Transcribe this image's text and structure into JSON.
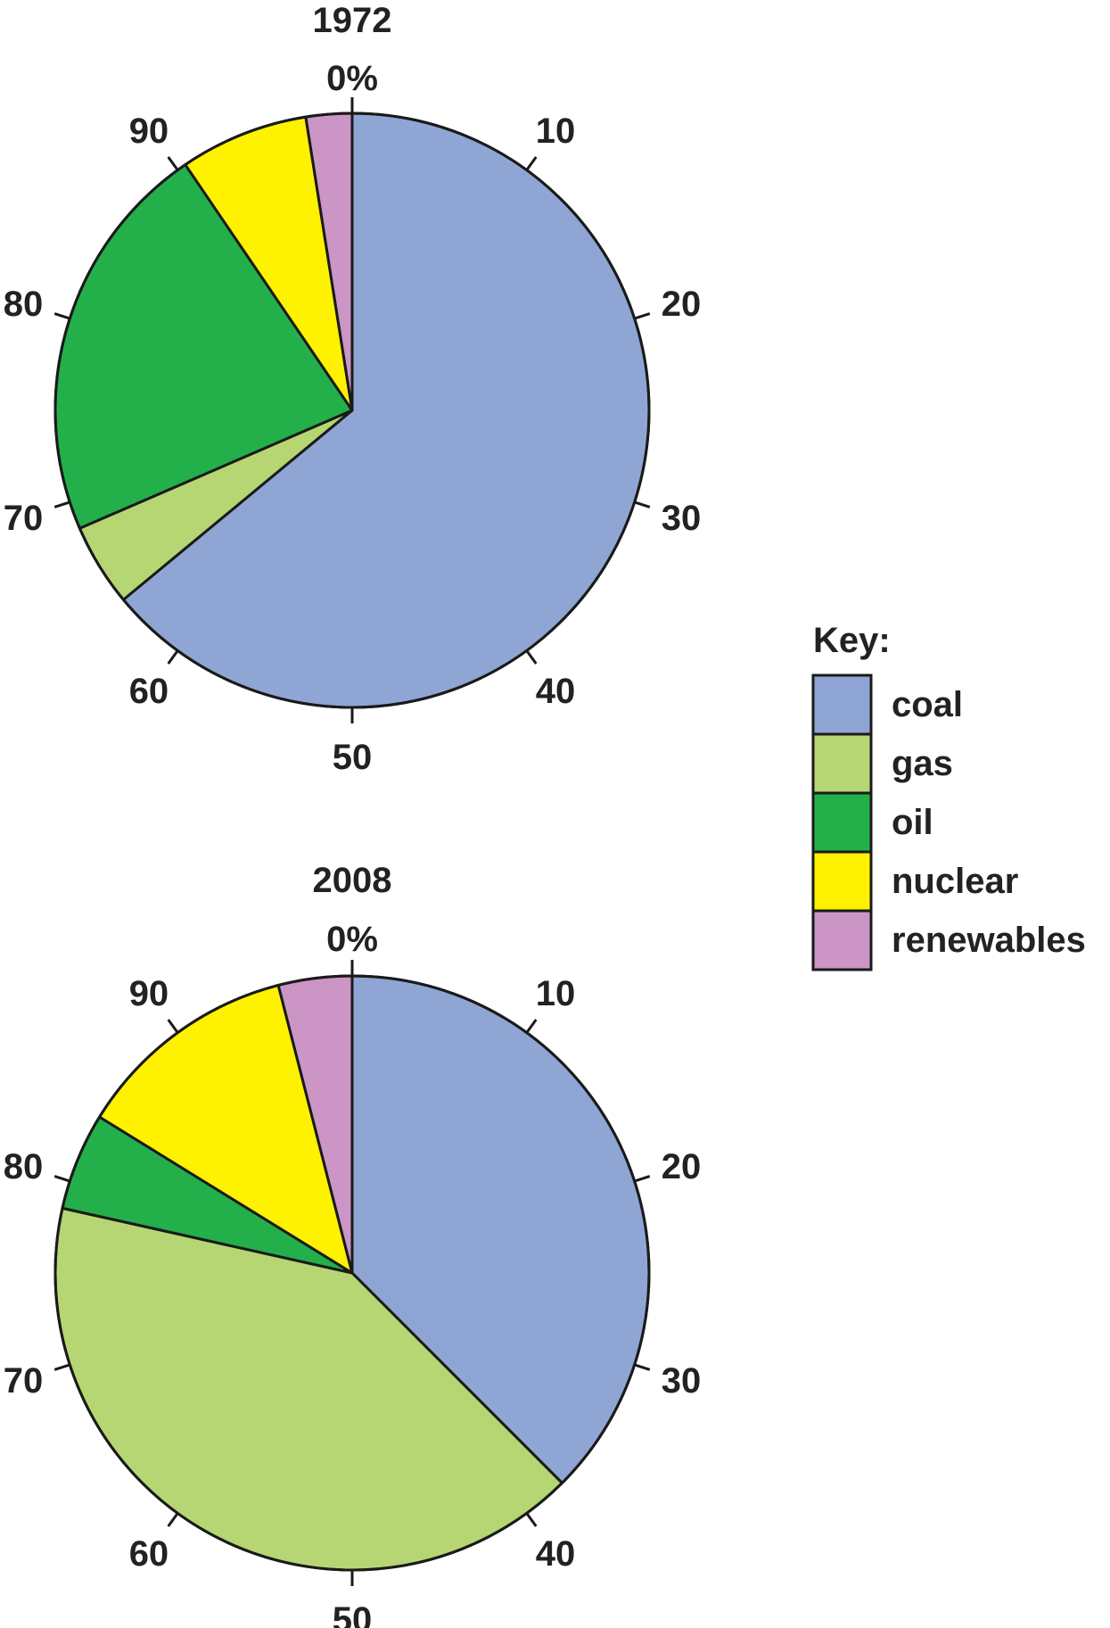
{
  "chart_data": [
    {
      "type": "pie",
      "title": "1972",
      "start_label": "0%",
      "scale_labels": [
        "10",
        "20",
        "30",
        "40",
        "50",
        "60",
        "70",
        "80",
        "90"
      ],
      "categories": [
        "coal",
        "gas",
        "oil",
        "nuclear",
        "renewables"
      ],
      "values": [
        64,
        4.5,
        22,
        7,
        2.5
      ]
    },
    {
      "type": "pie",
      "title": "2008",
      "start_label": "0%",
      "scale_labels": [
        "10",
        "20",
        "30",
        "40",
        "50",
        "60",
        "70",
        "80",
        "90"
      ],
      "categories": [
        "coal",
        "gas",
        "oil",
        "nuclear",
        "renewables"
      ],
      "values": [
        37.5,
        41,
        5.3,
        12.2,
        4
      ]
    }
  ],
  "legend": {
    "title": "Key:",
    "items": [
      {
        "label": "coal",
        "color": "#8fa6d4"
      },
      {
        "label": "gas",
        "color": "#b6d673"
      },
      {
        "label": "oil",
        "color": "#23b04a"
      },
      {
        "label": "nuclear",
        "color": "#fff200"
      },
      {
        "label": "renewables",
        "color": "#cb95c6"
      }
    ]
  }
}
